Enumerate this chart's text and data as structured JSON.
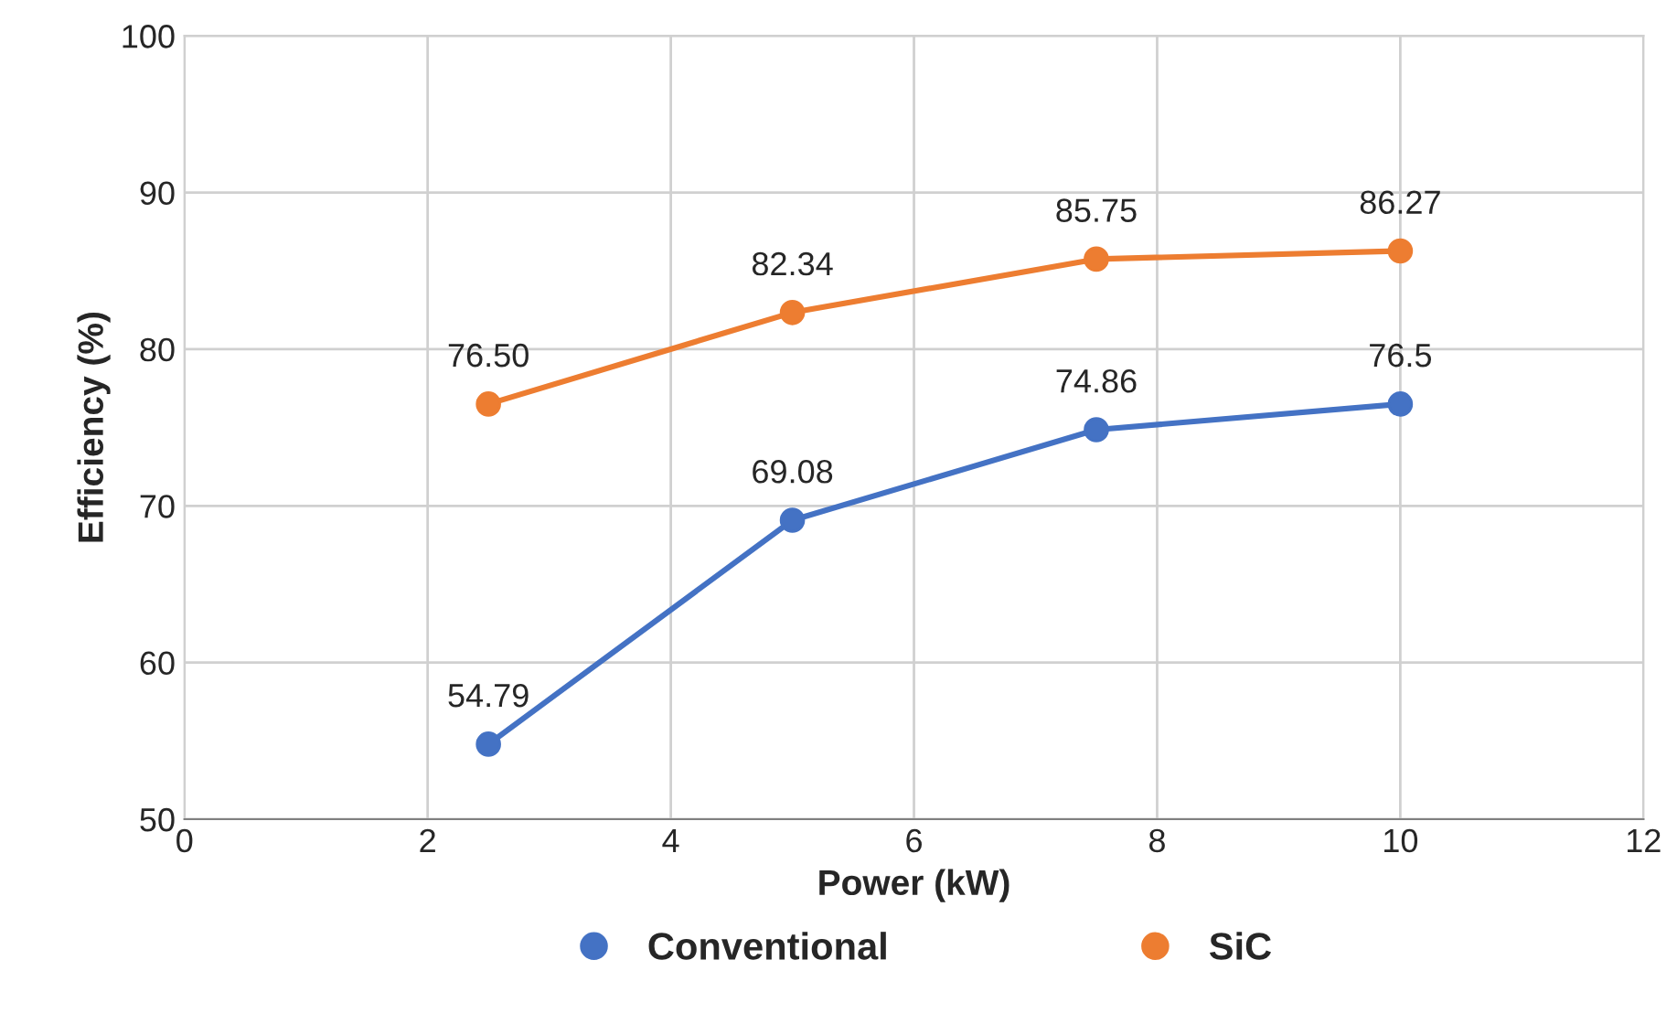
{
  "chart_data": {
    "type": "line",
    "xlabel": "Power (kW)",
    "ylabel": "Efficiency (%)",
    "x": [
      2.5,
      5,
      7.5,
      10
    ],
    "series": [
      {
        "name": "Conventional",
        "color": "#4472c4",
        "values": [
          54.79,
          69.08,
          74.86,
          76.5
        ],
        "value_labels": [
          "54.79",
          "69.08",
          "74.86",
          "76.5"
        ]
      },
      {
        "name": "SiC",
        "color": "#ed7d31",
        "values": [
          76.5,
          82.34,
          85.75,
          86.27
        ],
        "value_labels": [
          "76.50",
          "82.34",
          "85.75",
          "86.27"
        ]
      }
    ],
    "xlim": [
      0,
      12
    ],
    "xticks": [
      0,
      2,
      4,
      6,
      8,
      10,
      12
    ],
    "ylim": [
      50,
      100
    ],
    "yticks": [
      50,
      60,
      70,
      80,
      90,
      100
    ],
    "grid": true,
    "legend": "bottom",
    "marker": "circle",
    "line_style": "solid"
  }
}
